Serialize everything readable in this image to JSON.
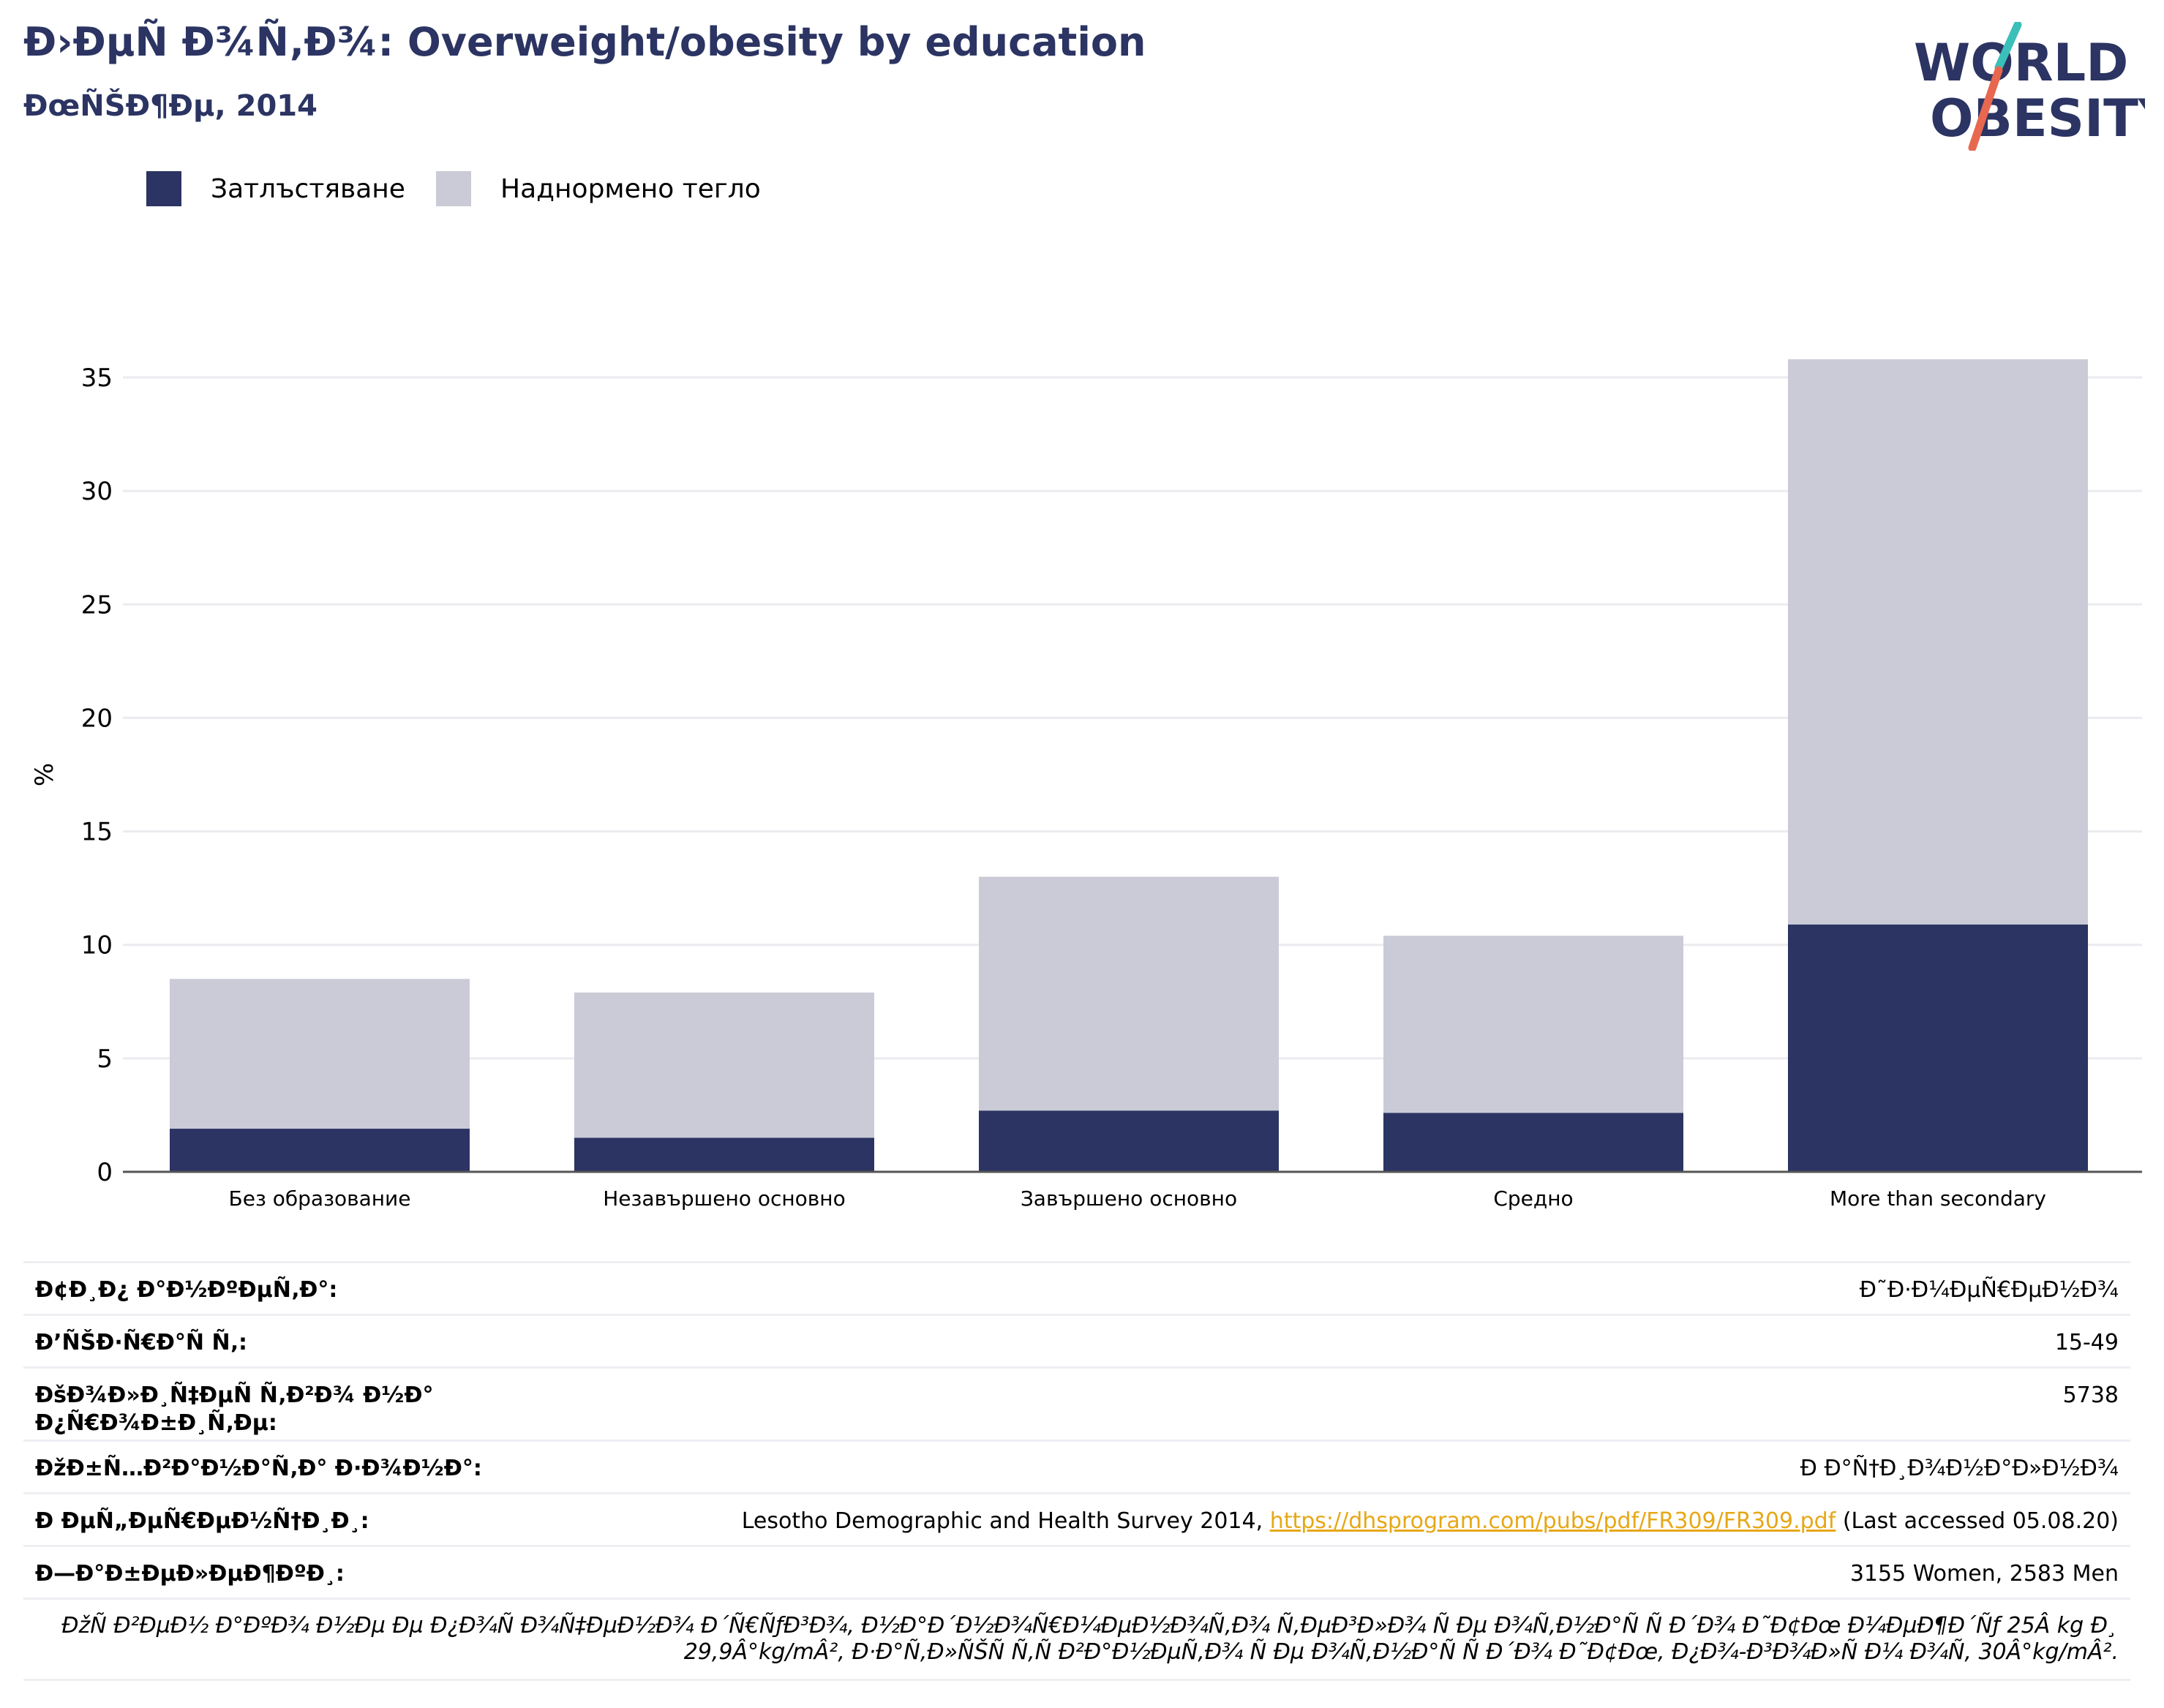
{
  "header": {
    "title": "Ð›ÐµÑ Ð¾Ñ‚Ð¾: Overweight/obesity by education",
    "subtitle": "ÐœÑŠÐ¶Ðµ, 2014"
  },
  "logo": {
    "line1": "WORLD",
    "line2": "OBESITY",
    "colors": {
      "text": "#2b3462",
      "slash_top": "#3bbfb9",
      "slash_bottom": "#e8674f"
    }
  },
  "legend": {
    "items": [
      {
        "label": "Затлъстяване",
        "color": "#2b3462"
      },
      {
        "label": "Наднормено тегло",
        "color": "#cacbd7"
      }
    ]
  },
  "chart_data": {
    "type": "bar",
    "stacked": true,
    "categories": [
      "Без образование",
      "Незавършено основно",
      "Завършено основно",
      "Средно",
      "More than secondary"
    ],
    "series": [
      {
        "name": "Затлъстяване",
        "values": [
          1.9,
          1.5,
          2.7,
          2.6,
          10.9
        ],
        "color": "#2b3462"
      },
      {
        "name": "Наднормено тегло",
        "values": [
          6.6,
          6.4,
          10.3,
          7.8,
          24.9
        ],
        "color": "#cacbd7"
      }
    ],
    "ylabel": "%",
    "yticks": [
      0,
      5,
      10,
      15,
      20,
      25,
      30,
      35
    ],
    "ylim": [
      0,
      37
    ],
    "grid": true,
    "legend_position": "top-left"
  },
  "info_table": {
    "rows": [
      {
        "label": "Ð¢Ð¸Ð¿ Ð°Ð½ÐºÐµÑ‚Ð°:",
        "value": "Ð˜Ð·Ð¼ÐµÑ€ÐµÐ½Ð¾"
      },
      {
        "label": "Ð’ÑŠÐ·Ñ€Ð°Ñ Ñ‚:",
        "value": "15-49"
      },
      {
        "label": "ÐšÐ¾Ð»Ð¸Ñ‡ÐµÑ Ñ‚Ð²Ð¾ Ð½Ð° Ð¿Ñ€Ð¾Ð±Ð¸Ñ‚Ðµ:",
        "value": "5738"
      },
      {
        "label": "ÐžÐ±Ñ…Ð²Ð°Ð½Ð°Ñ‚Ð° Ð·Ð¾Ð½Ð°:",
        "value": "Ð Ð°Ñ†Ð¸Ð¾Ð½Ð°Ð»Ð½Ð¾"
      }
    ],
    "references": {
      "label": "Ð ÐµÑ„ÐµÑ€ÐµÐ½Ñ†Ð¸Ð¸:",
      "prefix": "Lesotho Demographic and Health Survey 2014, ",
      "link": "https://dhsprogram.com/pubs/pdf/FR309/FR309.pdf",
      "suffix": " (Last accessed 05.08.20)"
    },
    "notes": {
      "label": "Ð—Ð°Ð±ÐµÐ»ÐµÐ¶ÐºÐ¸:",
      "value": "3155 Women, 2583 Men"
    },
    "footnote": "ÐžÑ Ð²ÐµÐ½ Ð°ÐºÐ¾ Ð½Ðµ Ðµ Ð¿Ð¾Ñ Ð¾Ñ‡ÐµÐ½Ð¾ Ð´Ñ€ÑƒÐ³Ð¾, Ð½Ð°Ð´Ð½Ð¾Ñ€Ð¼ÐµÐ½Ð¾Ñ‚Ð¾ Ñ‚ÐµÐ³Ð»Ð¾ Ñ Ðµ Ð¾Ñ‚Ð½Ð°Ñ Ñ  Ð´Ð¾ Ð˜Ð¢Ðœ Ð¼ÐµÐ¶Ð´Ñƒ 25Â kg Ð¸ 29,9Â°kg/mÂ², Ð·Ð°Ñ‚Ð»ÑŠÑ Ñ‚Ñ Ð²Ð°Ð½ÐµÑ‚Ð¾ Ñ Ðµ Ð¾Ñ‚Ð½Ð°Ñ Ñ  Ð´Ð¾ Ð˜Ð¢Ðœ, Ð¿Ð¾-Ð³Ð¾Ð»Ñ Ð¼ Ð¾Ñ‚ 30Â°kg/mÂ²."
  }
}
